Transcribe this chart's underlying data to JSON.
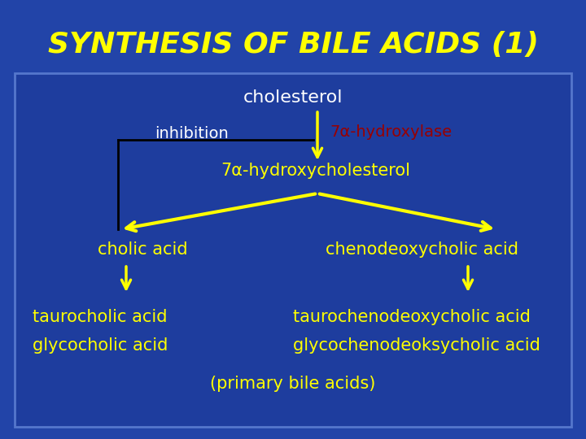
{
  "title": "SYNTHESIS OF BILE ACIDS (1)",
  "title_color": "#FFFF00",
  "outer_bg": "#2244a8",
  "content_bg": "#2244a8",
  "white_text": "#FFFFFF",
  "yellow_text": "#FFFF00",
  "red_text": "#990000",
  "arrow_yellow": "#FFFF00",
  "line_white": "#000000",
  "inhibition_line": "#000000",
  "cholesterol_label": "cholesterol",
  "inhibition_label": "inhibition",
  "hydroxylase_label": "7α-hydroxylase",
  "hydroxycholesterol_label": "7α-hydroxycholesterol",
  "cholic_label": "cholic acid",
  "chenodeoxy_label": "chenodeoxycholic acid",
  "taurocholic_label": "taurocholic acid",
  "glycocholic_label": "glycocholic acid",
  "taurochenodeoxy_label": "taurochenodeoxycholic acid",
  "glycochenodeoxy_label": "glycochenodeoksycholic acid",
  "primary_label": "(primary bile acids)"
}
